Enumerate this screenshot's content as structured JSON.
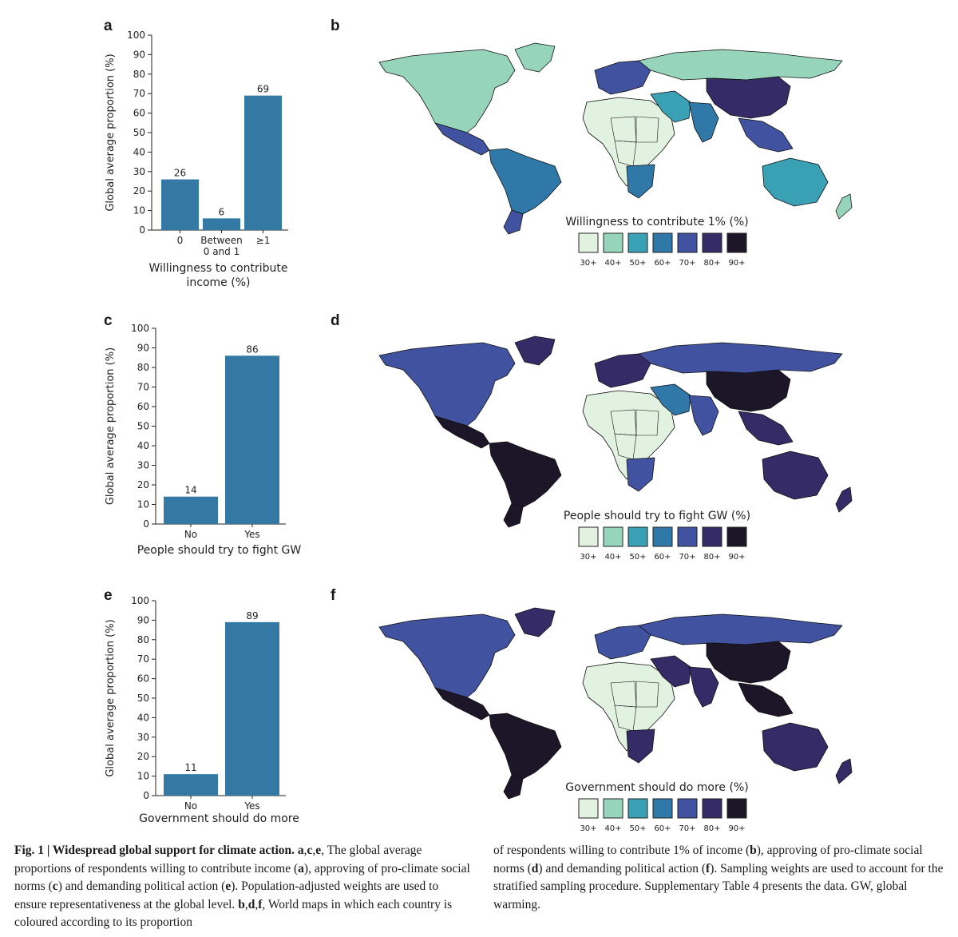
{
  "panels": [
    {
      "letter": "a"
    },
    {
      "letter": "b"
    },
    {
      "letter": "c"
    },
    {
      "letter": "d"
    },
    {
      "letter": "e"
    },
    {
      "letter": "f"
    }
  ],
  "colors": {
    "bar": "#3479a3",
    "scale": [
      "#e2f2e0",
      "#96d4bc",
      "#3aa1b4",
      "#2f78a8",
      "#4152a0",
      "#352b66",
      "#1c1628"
    ],
    "no_data": "#ffffff"
  },
  "chart_data": [
    {
      "type": "bar",
      "panel": "a",
      "categories": [
        "0",
        "Between 0 and 1",
        "≥1"
      ],
      "category_lines": [
        [
          "0"
        ],
        [
          "Between",
          "0 and 1"
        ],
        [
          "≥1"
        ]
      ],
      "values": [
        26,
        6,
        69
      ],
      "value_labels": [
        "26",
        "6",
        "69"
      ],
      "ylabel": "Global average proportion (%)",
      "xlabel_lines": [
        "Willingness to contribute",
        "income (%)"
      ],
      "ylim": [
        0,
        100
      ],
      "yticks": [
        0,
        10,
        20,
        30,
        40,
        50,
        60,
        70,
        80,
        90,
        100
      ]
    },
    {
      "type": "bar",
      "panel": "c",
      "categories": [
        "No",
        "Yes"
      ],
      "category_lines": [
        [
          "No"
        ],
        [
          "Yes"
        ]
      ],
      "values": [
        14,
        86
      ],
      "value_labels": [
        "14",
        "86"
      ],
      "ylabel": "Global average proportion (%)",
      "xlabel_lines": [
        "People should try to fight GW"
      ],
      "ylim": [
        0,
        100
      ],
      "yticks": [
        0,
        10,
        20,
        30,
        40,
        50,
        60,
        70,
        80,
        90,
        100
      ]
    },
    {
      "type": "bar",
      "panel": "e",
      "categories": [
        "No",
        "Yes"
      ],
      "category_lines": [
        [
          "No"
        ],
        [
          "Yes"
        ]
      ],
      "values": [
        11,
        89
      ],
      "value_labels": [
        "11",
        "89"
      ],
      "ylabel": "Global average proportion (%)",
      "xlabel_lines": [
        "Government should do more"
      ],
      "ylim": [
        0,
        100
      ],
      "yticks": [
        0,
        10,
        20,
        30,
        40,
        50,
        60,
        70,
        80,
        90,
        100
      ]
    }
  ],
  "maps": [
    {
      "panel": "b",
      "legend_title": "Willingness to contribute 1% (%)",
      "legend_labels": [
        "30+",
        "40+",
        "50+",
        "60+",
        "70+",
        "80+",
        "90+"
      ],
      "region_colors": {
        "north_america": 1,
        "greenland": 1,
        "central_america": 4,
        "south_america": 3,
        "south_america_south": 4,
        "europe": 4,
        "africa": 0,
        "africa_south": 3,
        "russia": 1,
        "middle_east": 2,
        "south_asia": 3,
        "china": 5,
        "southeast_asia": 4,
        "australia": 2,
        "new_zealand": 1
      }
    },
    {
      "panel": "d",
      "legend_title": "People should try to fight GW (%)",
      "legend_labels": [
        "30+",
        "40+",
        "50+",
        "60+",
        "70+",
        "80+",
        "90+"
      ],
      "region_colors": {
        "north_america": 4,
        "greenland": 5,
        "central_america": 6,
        "south_america": 6,
        "south_america_south": 6,
        "europe": 5,
        "africa": 0,
        "africa_south": 4,
        "russia": 4,
        "middle_east": 3,
        "south_asia": 4,
        "china": 6,
        "southeast_asia": 5,
        "australia": 5,
        "new_zealand": 5
      }
    },
    {
      "panel": "f",
      "legend_title": "Government should do more (%)",
      "legend_labels": [
        "30+",
        "40+",
        "50+",
        "60+",
        "70+",
        "80+",
        "90+"
      ],
      "region_colors": {
        "north_america": 4,
        "greenland": 5,
        "central_america": 6,
        "south_america": 6,
        "south_america_south": 6,
        "europe": 4,
        "africa": 0,
        "africa_south": 5,
        "russia": 4,
        "middle_east": 5,
        "south_asia": 5,
        "china": 6,
        "southeast_asia": 6,
        "australia": 5,
        "new_zealand": 5
      }
    }
  ],
  "caption": {
    "left_bold": "Fig. 1 | Widespread global support for climate action.",
    "left_text_1": " ",
    "a": "a",
    "c": "c",
    "e": "e",
    "b": "b",
    "d": "d",
    "f": "f",
    "left_rest": ", The global average proportions of respondents willing to contribute income (",
    "left_mid1": "), approving of pro-climate social norms (",
    "left_mid2": ") and demanding political action (",
    "left_mid3": "). Population-adjusted weights are used to ensure representativeness at the global level. ",
    "left_end": ", World maps in which each country is coloured according to its proportion",
    "right_1": "of respondents willing to contribute 1% of income (",
    "right_2": "), approving of pro-climate social norms (",
    "right_3": ") and demanding political action (",
    "right_4": "). Sampling weights are used to account for the stratified sampling procedure. Supplementary Table 4 presents the data. GW, global warming."
  }
}
